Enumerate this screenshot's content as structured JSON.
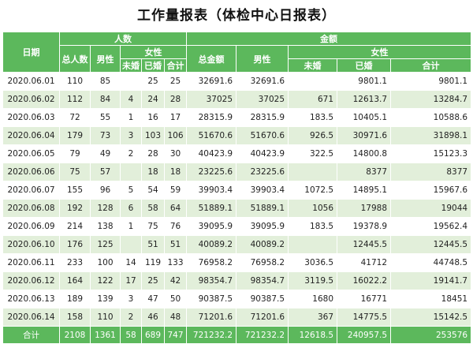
{
  "title": "工作量报表（体检中心日报表）",
  "header": {
    "date": "日期",
    "people": "人数",
    "amount": "金额",
    "total_people": "总人数",
    "male": "男性",
    "female": "女性",
    "unmarried": "未婚",
    "married": "已婚",
    "subtotal": "合计",
    "total_amount": "总金额"
  },
  "rows": [
    {
      "date": "2020.06.01",
      "total": "110",
      "male": "85",
      "f_unmarried": "",
      "f_married": "25",
      "f_total": "25",
      "amount_total": "32691.6",
      "amount_male": "32691.6",
      "amount_f_unmarried": "",
      "amount_f_married": "9801.1",
      "amount_f_total": "9801.1"
    },
    {
      "date": "2020.06.02",
      "total": "112",
      "male": "84",
      "f_unmarried": "4",
      "f_married": "24",
      "f_total": "28",
      "amount_total": "37025",
      "amount_male": "37025",
      "amount_f_unmarried": "671",
      "amount_f_married": "12613.7",
      "amount_f_total": "13284.7"
    },
    {
      "date": "2020.06.03",
      "total": "72",
      "male": "55",
      "f_unmarried": "1",
      "f_married": "16",
      "f_total": "17",
      "amount_total": "28315.9",
      "amount_male": "28315.9",
      "amount_f_unmarried": "183.5",
      "amount_f_married": "10405.1",
      "amount_f_total": "10588.6"
    },
    {
      "date": "2020.06.04",
      "total": "179",
      "male": "73",
      "f_unmarried": "3",
      "f_married": "103",
      "f_total": "106",
      "amount_total": "51670.6",
      "amount_male": "51670.6",
      "amount_f_unmarried": "926.5",
      "amount_f_married": "30971.6",
      "amount_f_total": "31898.1"
    },
    {
      "date": "2020.06.05",
      "total": "79",
      "male": "49",
      "f_unmarried": "2",
      "f_married": "28",
      "f_total": "30",
      "amount_total": "40423.9",
      "amount_male": "40423.9",
      "amount_f_unmarried": "322.5",
      "amount_f_married": "14800.8",
      "amount_f_total": "15123.3"
    },
    {
      "date": "2020.06.06",
      "total": "75",
      "male": "57",
      "f_unmarried": "",
      "f_married": "18",
      "f_total": "18",
      "amount_total": "23225.6",
      "amount_male": "23225.6",
      "amount_f_unmarried": "",
      "amount_f_married": "8377",
      "amount_f_total": "8377"
    },
    {
      "date": "2020.06.07",
      "total": "155",
      "male": "96",
      "f_unmarried": "5",
      "f_married": "54",
      "f_total": "59",
      "amount_total": "39903.4",
      "amount_male": "39903.4",
      "amount_f_unmarried": "1072.5",
      "amount_f_married": "14895.1",
      "amount_f_total": "15967.6"
    },
    {
      "date": "2020.06.08",
      "total": "192",
      "male": "128",
      "f_unmarried": "6",
      "f_married": "58",
      "f_total": "64",
      "amount_total": "51889.1",
      "amount_male": "51889.1",
      "amount_f_unmarried": "1056",
      "amount_f_married": "17988",
      "amount_f_total": "19044"
    },
    {
      "date": "2020.06.09",
      "total": "214",
      "male": "138",
      "f_unmarried": "1",
      "f_married": "75",
      "f_total": "76",
      "amount_total": "39095.9",
      "amount_male": "39095.9",
      "amount_f_unmarried": "183.5",
      "amount_f_married": "19378.9",
      "amount_f_total": "19562.4"
    },
    {
      "date": "2020.06.10",
      "total": "176",
      "male": "125",
      "f_unmarried": "",
      "f_married": "51",
      "f_total": "51",
      "amount_total": "40089.2",
      "amount_male": "40089.2",
      "amount_f_unmarried": "",
      "amount_f_married": "12445.5",
      "amount_f_total": "12445.5"
    },
    {
      "date": "2020.06.11",
      "total": "233",
      "male": "100",
      "f_unmarried": "14",
      "f_married": "119",
      "f_total": "133",
      "amount_total": "76958.2",
      "amount_male": "76958.2",
      "amount_f_unmarried": "3036.5",
      "amount_f_married": "41712",
      "amount_f_total": "44748.5"
    },
    {
      "date": "2020.06.12",
      "total": "164",
      "male": "122",
      "f_unmarried": "17",
      "f_married": "25",
      "f_total": "42",
      "amount_total": "98354.7",
      "amount_male": "98354.7",
      "amount_f_unmarried": "3119.5",
      "amount_f_married": "16022.2",
      "amount_f_total": "19141.7"
    },
    {
      "date": "2020.06.13",
      "total": "189",
      "male": "139",
      "f_unmarried": "3",
      "f_married": "47",
      "f_total": "50",
      "amount_total": "90387.5",
      "amount_male": "90387.5",
      "amount_f_unmarried": "1680",
      "amount_f_married": "16771",
      "amount_f_total": "18451"
    },
    {
      "date": "2020.06.14",
      "total": "158",
      "male": "110",
      "f_unmarried": "2",
      "f_married": "46",
      "f_total": "48",
      "amount_total": "71201.6",
      "amount_male": "71201.6",
      "amount_f_unmarried": "367",
      "amount_f_married": "14775.5",
      "amount_f_total": "15142.5"
    }
  ],
  "totals": {
    "label": "合计",
    "total": "2108",
    "male": "1361",
    "f_unmarried": "58",
    "f_married": "689",
    "f_total": "747",
    "amount_total": "721232.2",
    "amount_male": "721232.2",
    "amount_f_unmarried": "12618.5",
    "amount_f_married": "240957.5",
    "amount_f_total": "253576"
  },
  "colors": {
    "header_green": "#5cb85c",
    "stripe_green": "#e2efda"
  }
}
